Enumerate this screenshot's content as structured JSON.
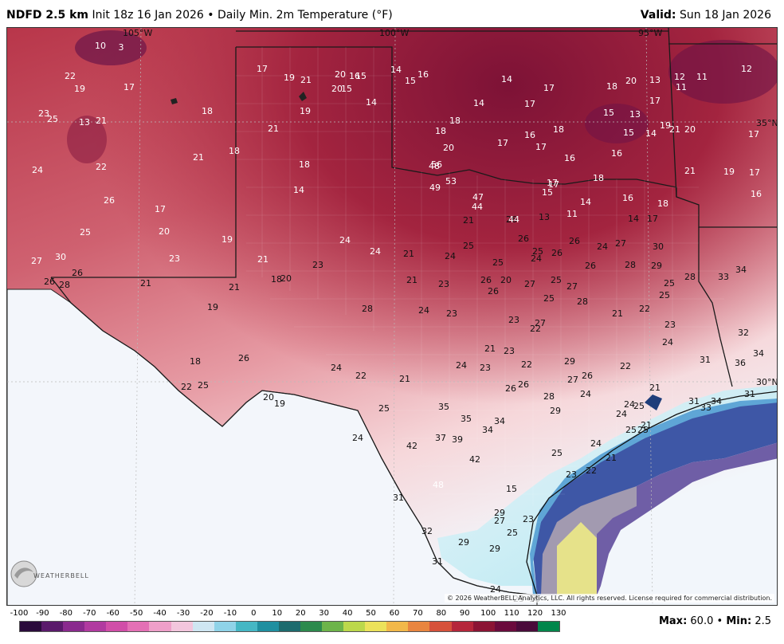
{
  "header": {
    "model": "NDFD 2.5 km",
    "init": "Init 18z 16 Jan 2026",
    "separator": "•",
    "product": "Daily Min. 2m Temperature (°F)",
    "valid_label": "Valid:",
    "valid_date": "Sun 18 Jan 2026"
  },
  "map": {
    "graticule_labels": [
      "105°W",
      "100°W",
      "95°W",
      "35°N",
      "30°N"
    ],
    "temperature_labels": [
      "10",
      "3",
      "22",
      "19",
      "17",
      "23",
      "25",
      "13",
      "21",
      "18",
      "24",
      "22",
      "21",
      "18",
      "26",
      "17",
      "25",
      "20",
      "23",
      "27",
      "30",
      "26",
      "28",
      "26",
      "21",
      "19",
      "22",
      "26",
      "18",
      "25",
      "17",
      "19",
      "21",
      "20",
      "15",
      "14",
      "16",
      "20",
      "19",
      "21",
      "18",
      "14",
      "19",
      "21",
      "18",
      "20",
      "21",
      "23",
      "28",
      "24",
      "24",
      "24",
      "22",
      "21",
      "20",
      "19",
      "25",
      "24",
      "21",
      "24",
      "21",
      "23",
      "24",
      "23",
      "25",
      "26",
      "25",
      "26",
      "20",
      "23",
      "27",
      "27",
      "22",
      "24",
      "25",
      "25",
      "27",
      "28",
      "24",
      "27",
      "28",
      "26",
      "26",
      "26",
      "25",
      "26",
      "26",
      "21",
      "21",
      "23",
      "23",
      "22",
      "24",
      "26",
      "26",
      "28",
      "29",
      "29",
      "27",
      "26",
      "24",
      "22",
      "21",
      "21",
      "22",
      "23",
      "24",
      "25",
      "25",
      "28",
      "29",
      "30",
      "33",
      "34",
      "32",
      "34",
      "36",
      "31",
      "31",
      "31",
      "33",
      "34",
      "35",
      "35",
      "34",
      "34",
      "37",
      "39",
      "42",
      "42",
      "48",
      "31",
      "32",
      "31",
      "29",
      "29",
      "29",
      "27",
      "25",
      "23",
      "25",
      "23",
      "22",
      "21",
      "24",
      "24",
      "25",
      "24",
      "25",
      "25",
      "21",
      "24",
      "23",
      "16",
      "15",
      "14",
      "16",
      "15",
      "15",
      "14",
      "17",
      "17",
      "14",
      "18",
      "18",
      "20",
      "17",
      "16",
      "17",
      "18",
      "16",
      "18",
      "20",
      "17",
      "19",
      "21",
      "20",
      "21",
      "19",
      "17",
      "17",
      "16",
      "12",
      "11",
      "11",
      "12",
      "13",
      "13",
      "15",
      "15",
      "14",
      "16",
      "18",
      "16",
      "18",
      "17",
      "14",
      "14",
      "11",
      "13",
      "17",
      "15",
      "17",
      "44",
      "44",
      "47",
      "49",
      "53",
      "56",
      "48"
    ]
  },
  "copyright": "© 2026 WeatherBELL Analytics, LLC. All rights reserved. License required for commercial distribution.",
  "logo": {
    "text": "WEATHERBELL"
  },
  "colorbar": {
    "ticks": [
      "-100",
      "-90",
      "-80",
      "-70",
      "-60",
      "-50",
      "-40",
      "-30",
      "-20",
      "-10",
      "0",
      "10",
      "20",
      "30",
      "40",
      "50",
      "60",
      "70",
      "80",
      "90",
      "100",
      "110",
      "120",
      "130"
    ],
    "colors": [
      "#2a0b3b",
      "#5a1a6b",
      "#8a2a8e",
      "#b13aa0",
      "#d14ea8",
      "#e470b5",
      "#ef9fc9",
      "#f3c6dd",
      "#cfe6f2",
      "#8fd3e8",
      "#45b7c4",
      "#1f8fa0",
      "#1d6b6e",
      "#2c8a4d",
      "#6db44a",
      "#bcd84b",
      "#ece25a",
      "#f2b849",
      "#e9853f",
      "#d6513a",
      "#b5263a",
      "#8b1434",
      "#6a0b3c",
      "#4a0b3a",
      "#00864b"
    ]
  },
  "stats": {
    "max_label": "Max:",
    "max_value": "60.0",
    "sep": "•",
    "min_label": "Min:",
    "min_value": "2.5"
  }
}
